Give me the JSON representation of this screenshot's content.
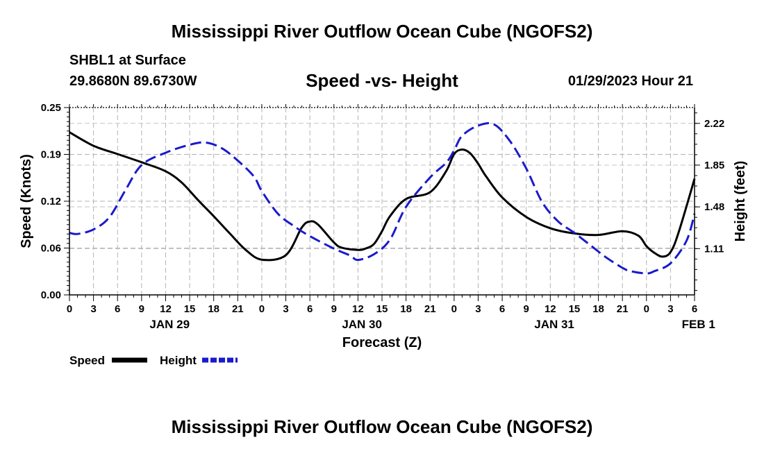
{
  "header": {
    "title": "Mississippi River Outflow Ocean Cube (NGOFS2)",
    "station": "SHBL1 at Surface",
    "coords": "29.8680N  89.6730W",
    "subtitle": "Speed -vs- Height",
    "datetime": "01/29/2023 Hour 21",
    "bottom_title": "Mississippi River Outflow Ocean Cube (NGOFS2)"
  },
  "chart_data": {
    "type": "line",
    "title": "Speed -vs- Height",
    "xlabel": "Forecast (Z)",
    "ylabel": "Speed (Knots)",
    "y2label": "Height (feet)",
    "x_range": [
      0,
      78
    ],
    "ylim": [
      0,
      0.25
    ],
    "y2lim": [
      0.7,
      2.36
    ],
    "yticks": [
      "0.00",
      "0.06",
      "0.12",
      "0.19",
      "0.25"
    ],
    "ytick_values": [
      0,
      0.0625,
      0.125,
      0.1875,
      0.25
    ],
    "y2ticks": [
      "1.11",
      "1.48",
      "1.85",
      "2.22"
    ],
    "y2tick_values": [
      1.11,
      1.48,
      1.85,
      2.22
    ],
    "xticks": [
      "0",
      "3",
      "6",
      "9",
      "12",
      "15",
      "18",
      "21",
      "0",
      "3",
      "6",
      "9",
      "12",
      "15",
      "18",
      "21",
      "0",
      "3",
      "6",
      "9",
      "12",
      "15",
      "18",
      "21",
      "0",
      "3",
      "6"
    ],
    "date_labels": [
      {
        "label": "JAN 29",
        "hour": 12.5
      },
      {
        "label": "JAN 30",
        "hour": 36.5
      },
      {
        "label": "JAN 31",
        "hour": 60.5
      },
      {
        "label": "FEB 1",
        "hour": 78.5
      }
    ],
    "legend": [
      "Speed",
      "Height"
    ],
    "series": [
      {
        "name": "Speed",
        "color": "#000000",
        "dash": false,
        "x": [
          0,
          3,
          6,
          9,
          12,
          14,
          16,
          18,
          20,
          22,
          24,
          27,
          29,
          30,
          31,
          33,
          34,
          36,
          37,
          38,
          39,
          40,
          42,
          45,
          47,
          48,
          49,
          50,
          51,
          52,
          54,
          57,
          60,
          63,
          66,
          69,
          71,
          72,
          73,
          74,
          75,
          76,
          78
        ],
        "values": [
          0.217,
          0.199,
          0.188,
          0.177,
          0.165,
          0.15,
          0.127,
          0.105,
          0.082,
          0.06,
          0.047,
          0.053,
          0.09,
          0.098,
          0.094,
          0.07,
          0.063,
          0.06,
          0.062,
          0.068,
          0.085,
          0.105,
          0.128,
          0.137,
          0.165,
          0.188,
          0.194,
          0.189,
          0.175,
          0.158,
          0.13,
          0.104,
          0.089,
          0.082,
          0.08,
          0.085,
          0.079,
          0.065,
          0.056,
          0.051,
          0.057,
          0.083,
          0.155
        ]
      },
      {
        "name": "Height",
        "color": "#1a1acc",
        "dash": true,
        "x": [
          0,
          1,
          3,
          5,
          7,
          9,
          12,
          15,
          17,
          19,
          21,
          23,
          24,
          26,
          28,
          30,
          33,
          35,
          36,
          38,
          40,
          42,
          45,
          47,
          48,
          49,
          51,
          53,
          55,
          57,
          59,
          61,
          63,
          65,
          67,
          69,
          70,
          72,
          73,
          75,
          77,
          78
        ],
        "values": [
          1.25,
          1.24,
          1.28,
          1.39,
          1.63,
          1.85,
          1.96,
          2.03,
          2.05,
          2.0,
          1.89,
          1.75,
          1.62,
          1.42,
          1.31,
          1.22,
          1.11,
          1.05,
          1.01,
          1.06,
          1.19,
          1.48,
          1.74,
          1.87,
          1.98,
          2.11,
          2.2,
          2.21,
          2.06,
          1.82,
          1.52,
          1.35,
          1.25,
          1.14,
          1.03,
          0.94,
          0.91,
          0.89,
          0.91,
          0.98,
          1.18,
          1.42
        ]
      }
    ]
  }
}
